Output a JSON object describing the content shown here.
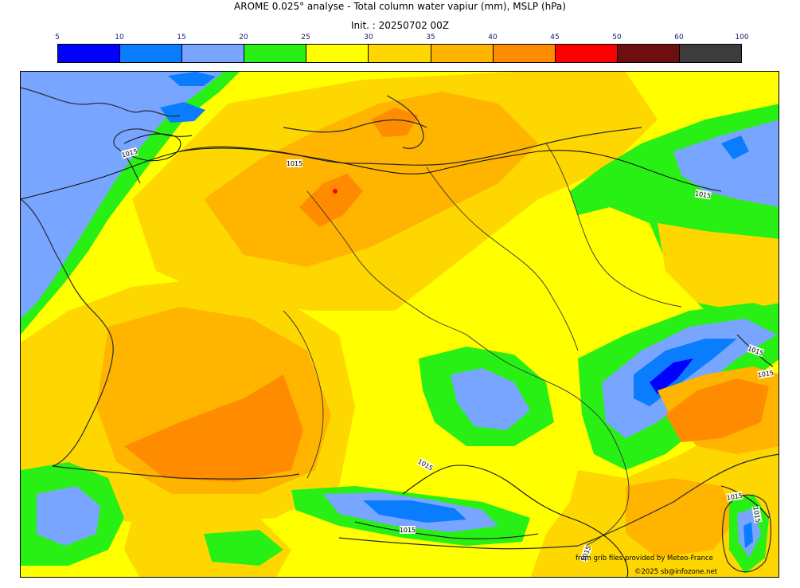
{
  "title": "AROME 0.025° analyse - Total column water vapiur (mm), MSLP (hPa)",
  "subtitle": "Init. : 20250702 00Z",
  "colorbar": {
    "ticks": [
      "5",
      "10",
      "15",
      "20",
      "25",
      "30",
      "35",
      "40",
      "45",
      "50",
      "60",
      "100"
    ],
    "colors": [
      "#0000ff",
      "#0a7dff",
      "#78a5ff",
      "#28f014",
      "#ffff00",
      "#ffd700",
      "#ffb400",
      "#ff8c00",
      "#ff0000",
      "#6e0f0f",
      "#3c3c3c"
    ]
  },
  "map": {
    "field": "Total column water vapour (mm)",
    "isobar_labels": [
      "1015",
      "1015",
      "1015",
      "1015",
      "1015",
      "1015",
      "1015",
      "1015",
      "1015",
      "1015"
    ]
  },
  "credits": {
    "source": "from grib files provided by Meteo-France",
    "copyright": "©2025 sb@infozone.net"
  }
}
